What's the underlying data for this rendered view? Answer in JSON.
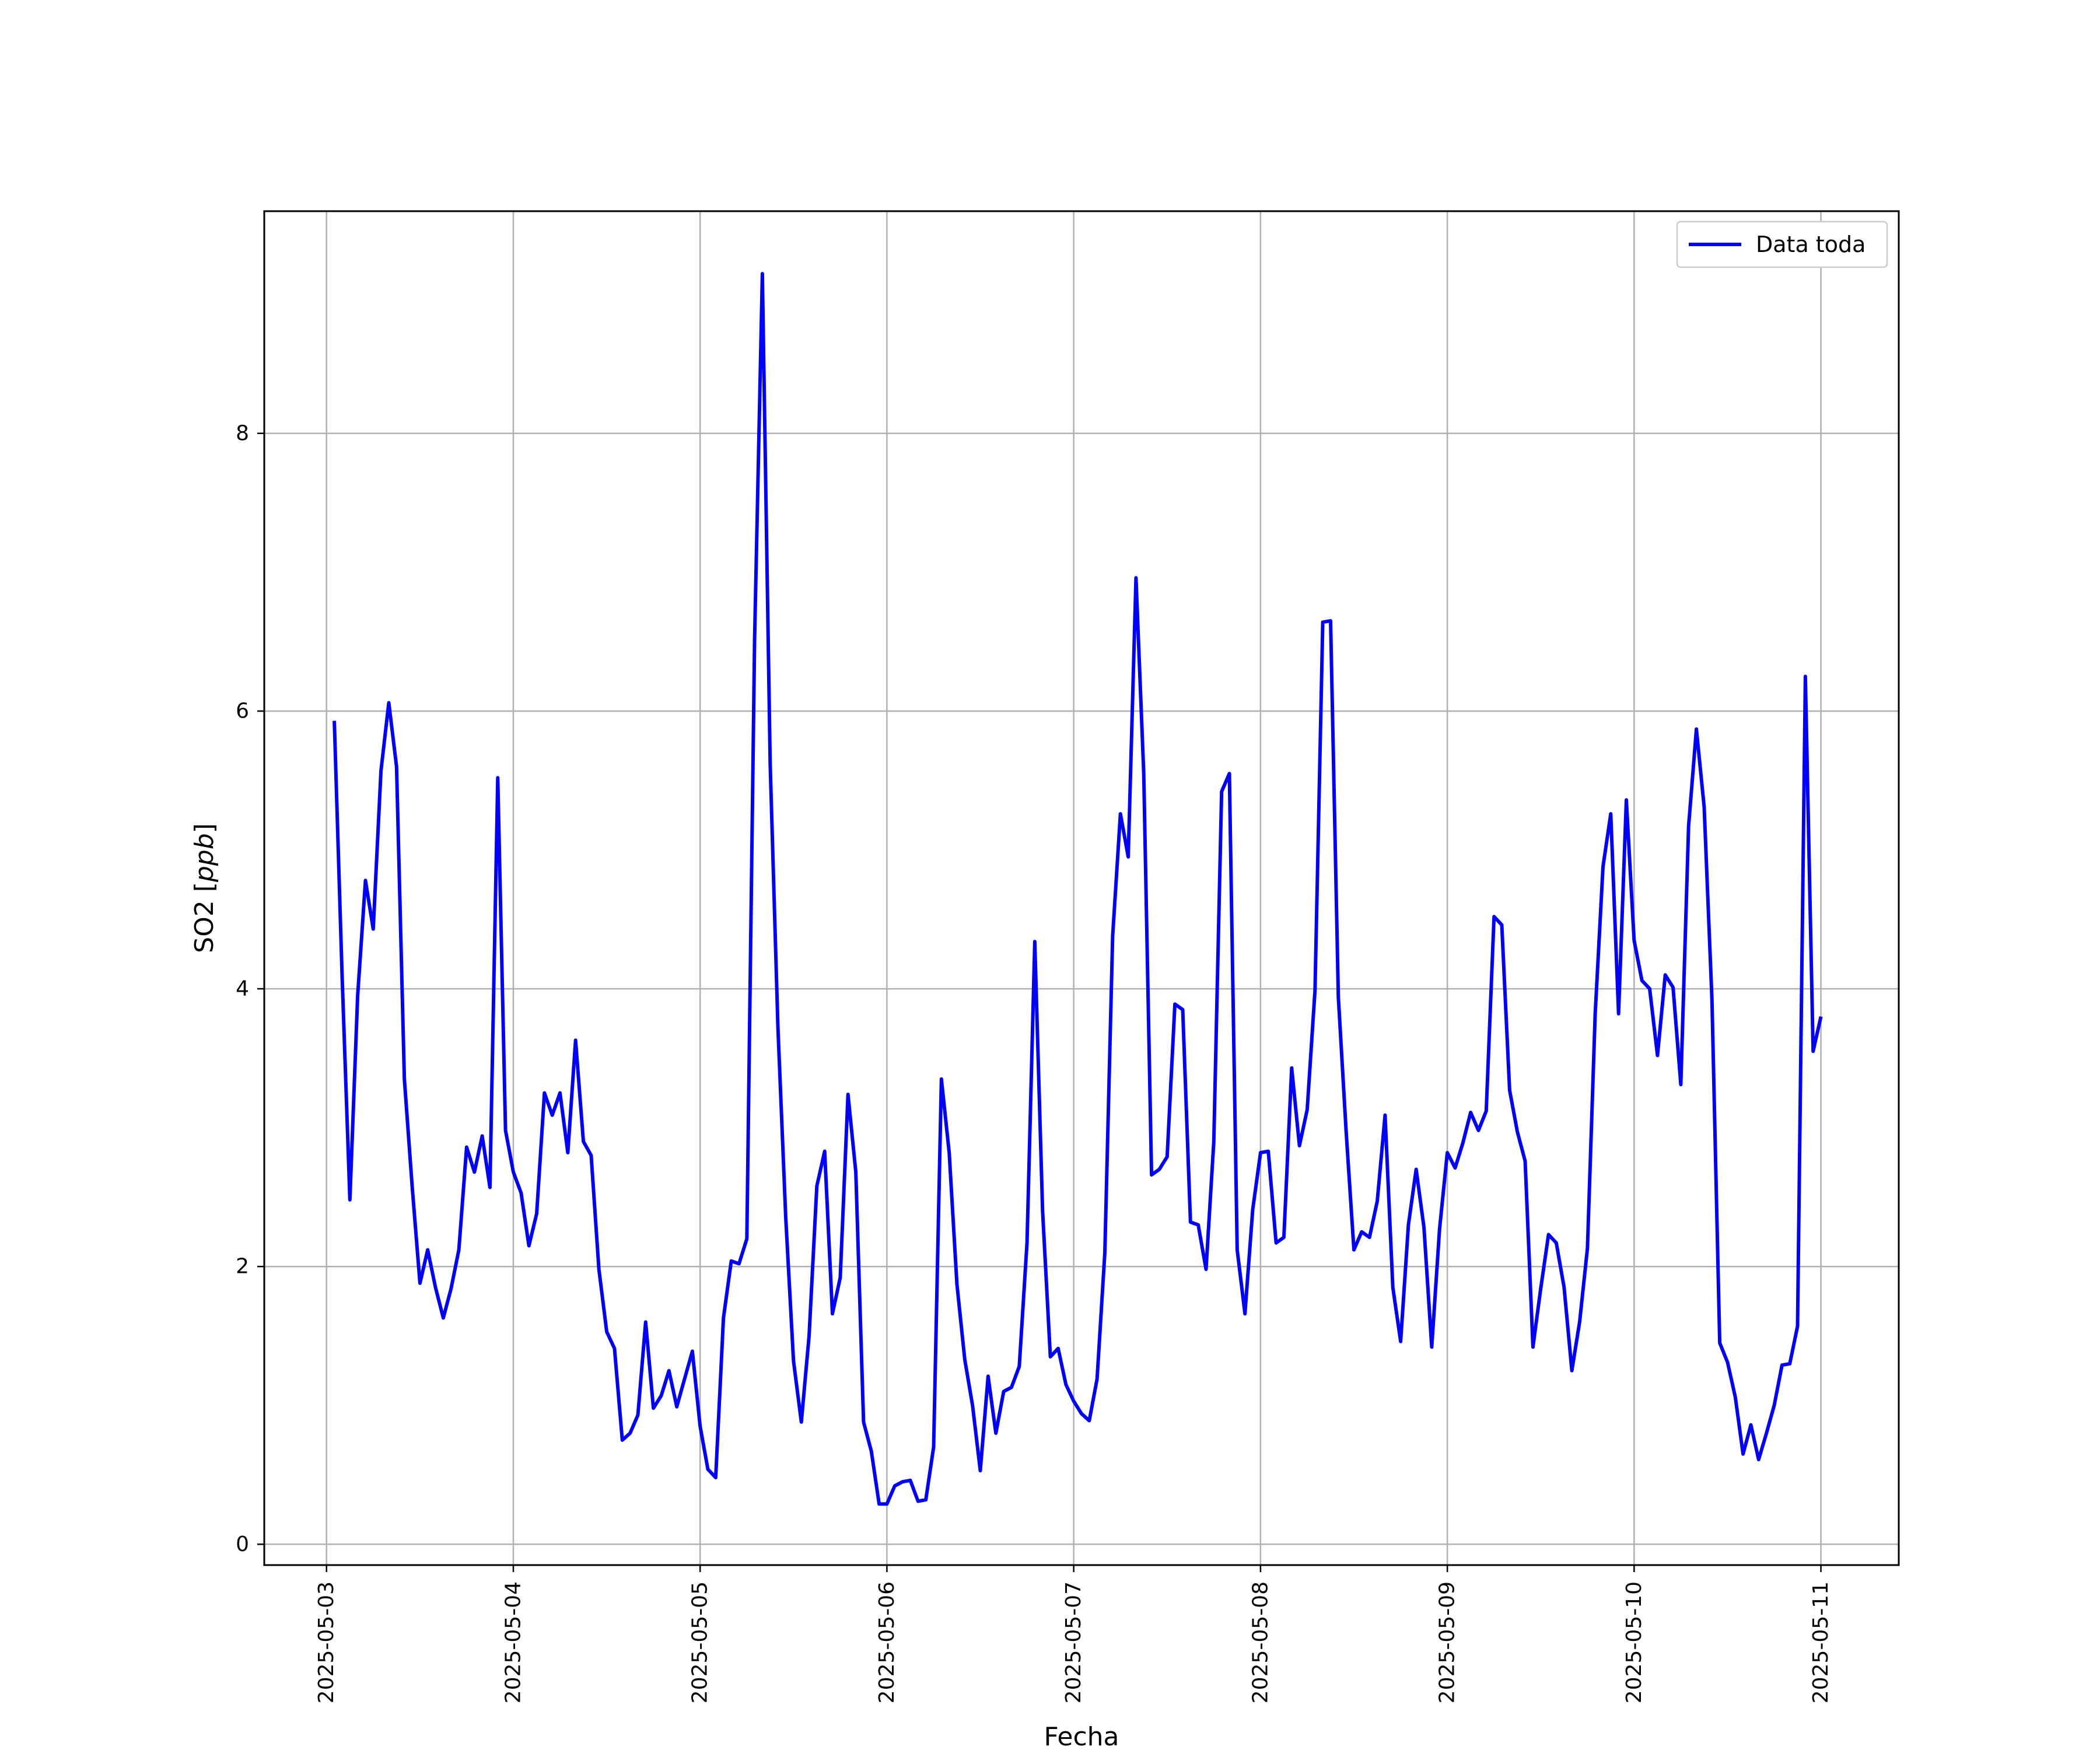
{
  "chart_data": {
    "type": "line",
    "xlabel": "Fecha",
    "ylabel_main": "SO2 [",
    "ylabel_italic": "ppb",
    "ylabel_end": "]",
    "xlim": [
      "2025-05-02 16:00",
      "2025-05-11 10:00"
    ],
    "ylim": [
      -0.15,
      9.6
    ],
    "x_ticks": [
      "2025-05-03",
      "2025-05-04",
      "2025-05-05",
      "2025-05-06",
      "2025-05-07",
      "2025-05-08",
      "2025-05-09",
      "2025-05-10",
      "2025-05-11"
    ],
    "y_ticks": [
      0,
      2,
      4,
      6,
      8
    ],
    "grid": true,
    "legend_position": "top-right",
    "series": [
      {
        "name": "Data toda",
        "color": "#0000ff",
        "x": [
          "2025-05-03 01:00",
          "2025-05-03 02:00",
          "2025-05-03 03:00",
          "2025-05-03 04:00",
          "2025-05-03 05:00",
          "2025-05-03 06:00",
          "2025-05-03 07:00",
          "2025-05-03 08:00",
          "2025-05-03 09:00",
          "2025-05-03 10:00",
          "2025-05-03 11:00",
          "2025-05-03 12:00",
          "2025-05-03 13:00",
          "2025-05-03 14:00",
          "2025-05-03 15:00",
          "2025-05-03 16:00",
          "2025-05-03 17:00",
          "2025-05-03 18:00",
          "2025-05-03 19:00",
          "2025-05-03 20:00",
          "2025-05-03 21:00",
          "2025-05-03 22:00",
          "2025-05-03 23:00",
          "2025-05-04 00:00",
          "2025-05-04 01:00",
          "2025-05-04 02:00",
          "2025-05-04 03:00",
          "2025-05-04 04:00",
          "2025-05-04 05:00",
          "2025-05-04 06:00",
          "2025-05-04 07:00",
          "2025-05-04 08:00",
          "2025-05-04 09:00",
          "2025-05-04 10:00",
          "2025-05-04 11:00",
          "2025-05-04 12:00",
          "2025-05-04 13:00",
          "2025-05-04 14:00",
          "2025-05-04 15:00",
          "2025-05-04 16:00",
          "2025-05-04 17:00",
          "2025-05-04 18:00",
          "2025-05-04 19:00",
          "2025-05-04 20:00",
          "2025-05-04 21:00",
          "2025-05-04 22:00",
          "2025-05-04 23:00",
          "2025-05-05 00:00",
          "2025-05-05 01:00",
          "2025-05-05 02:00",
          "2025-05-05 03:00",
          "2025-05-05 04:00",
          "2025-05-05 05:00",
          "2025-05-05 06:00",
          "2025-05-05 07:00",
          "2025-05-05 08:00",
          "2025-05-05 09:00",
          "2025-05-05 10:00",
          "2025-05-05 11:00",
          "2025-05-05 12:00",
          "2025-05-05 13:00",
          "2025-05-05 14:00",
          "2025-05-05 15:00",
          "2025-05-05 16:00",
          "2025-05-05 17:00",
          "2025-05-05 18:00",
          "2025-05-05 19:00",
          "2025-05-05 20:00",
          "2025-05-05 21:00",
          "2025-05-05 22:00",
          "2025-05-05 23:00",
          "2025-05-06 00:00",
          "2025-05-06 01:00",
          "2025-05-06 02:00",
          "2025-05-06 03:00",
          "2025-05-06 04:00",
          "2025-05-06 05:00",
          "2025-05-06 06:00",
          "2025-05-06 07:00",
          "2025-05-06 08:00",
          "2025-05-06 09:00",
          "2025-05-06 10:00",
          "2025-05-06 11:00",
          "2025-05-06 12:00",
          "2025-05-06 13:00",
          "2025-05-06 14:00",
          "2025-05-06 15:00",
          "2025-05-06 16:00",
          "2025-05-06 17:00",
          "2025-05-06 18:00",
          "2025-05-06 19:00",
          "2025-05-06 20:00",
          "2025-05-06 21:00",
          "2025-05-06 22:00",
          "2025-05-06 23:00",
          "2025-05-07 00:00",
          "2025-05-07 01:00",
          "2025-05-07 02:00",
          "2025-05-07 03:00",
          "2025-05-07 04:00",
          "2025-05-07 05:00",
          "2025-05-07 06:00",
          "2025-05-07 07:00",
          "2025-05-07 08:00",
          "2025-05-07 09:00",
          "2025-05-07 10:00",
          "2025-05-07 11:00",
          "2025-05-07 12:00",
          "2025-05-07 13:00",
          "2025-05-07 14:00",
          "2025-05-07 15:00",
          "2025-05-07 16:00",
          "2025-05-07 17:00",
          "2025-05-07 18:00",
          "2025-05-07 19:00",
          "2025-05-07 20:00",
          "2025-05-07 21:00",
          "2025-05-07 22:00",
          "2025-05-07 23:00",
          "2025-05-08 00:00",
          "2025-05-08 01:00",
          "2025-05-08 02:00",
          "2025-05-08 03:00",
          "2025-05-08 04:00",
          "2025-05-08 05:00",
          "2025-05-08 06:00",
          "2025-05-08 07:00",
          "2025-05-08 08:00",
          "2025-05-08 09:00",
          "2025-05-08 10:00",
          "2025-05-08 11:00",
          "2025-05-08 12:00",
          "2025-05-08 13:00",
          "2025-05-08 14:00",
          "2025-05-08 15:00",
          "2025-05-08 16:00",
          "2025-05-08 17:00",
          "2025-05-08 18:00",
          "2025-05-08 19:00",
          "2025-05-08 20:00",
          "2025-05-08 21:00",
          "2025-05-08 22:00",
          "2025-05-08 23:00",
          "2025-05-09 00:00",
          "2025-05-09 01:00",
          "2025-05-09 02:00",
          "2025-05-09 03:00",
          "2025-05-09 04:00",
          "2025-05-09 05:00",
          "2025-05-09 06:00",
          "2025-05-09 07:00",
          "2025-05-09 08:00",
          "2025-05-09 09:00",
          "2025-05-09 10:00",
          "2025-05-09 11:00",
          "2025-05-09 12:00",
          "2025-05-09 13:00",
          "2025-05-09 14:00",
          "2025-05-09 15:00",
          "2025-05-09 16:00",
          "2025-05-09 17:00",
          "2025-05-09 18:00",
          "2025-05-09 19:00",
          "2025-05-09 20:00",
          "2025-05-09 21:00",
          "2025-05-09 22:00",
          "2025-05-09 23:00",
          "2025-05-10 00:00",
          "2025-05-10 01:00",
          "2025-05-10 02:00",
          "2025-05-10 03:00",
          "2025-05-10 04:00",
          "2025-05-10 05:00",
          "2025-05-10 06:00",
          "2025-05-10 07:00",
          "2025-05-10 08:00",
          "2025-05-10 09:00",
          "2025-05-10 10:00",
          "2025-05-10 11:00",
          "2025-05-10 12:00",
          "2025-05-10 13:00",
          "2025-05-10 14:00",
          "2025-05-10 15:00",
          "2025-05-10 16:00",
          "2025-05-10 17:00",
          "2025-05-10 18:00",
          "2025-05-10 19:00",
          "2025-05-10 20:00",
          "2025-05-10 21:00",
          "2025-05-10 22:00",
          "2025-05-10 23:00",
          "2025-05-11 00:00"
        ],
        "y": [
          5.93,
          4.1,
          2.48,
          3.95,
          4.78,
          4.43,
          5.57,
          6.06,
          5.6,
          3.35,
          2.58,
          1.88,
          2.12,
          1.85,
          1.63,
          1.84,
          2.12,
          2.86,
          2.68,
          2.94,
          2.57,
          5.52,
          2.98,
          2.68,
          2.53,
          2.15,
          2.38,
          3.25,
          3.09,
          3.25,
          2.82,
          3.63,
          2.9,
          2.8,
          1.98,
          1.53,
          1.41,
          0.75,
          0.8,
          0.93,
          1.6,
          0.98,
          1.07,
          1.25,
          0.99,
          1.19,
          1.39,
          0.85,
          0.54,
          0.48,
          1.63,
          2.04,
          2.02,
          2.2,
          6.52,
          9.15,
          5.62,
          3.72,
          2.35,
          1.32,
          0.88,
          1.5,
          2.58,
          2.83,
          1.66,
          1.92,
          3.24,
          2.68,
          0.88,
          0.67,
          0.29,
          0.29,
          0.42,
          0.45,
          0.46,
          0.31,
          0.32,
          0.7,
          3.35,
          2.82,
          1.87,
          1.33,
          1.0,
          0.53,
          1.21,
          0.8,
          1.1,
          1.13,
          1.28,
          2.17,
          4.34,
          2.4,
          1.35,
          1.41,
          1.15,
          1.03,
          0.94,
          0.89,
          1.19,
          2.1,
          4.38,
          5.26,
          4.95,
          6.96,
          5.55,
          2.66,
          2.7,
          2.79,
          3.89,
          3.85,
          2.32,
          2.3,
          1.98,
          2.9,
          5.42,
          5.55,
          2.12,
          1.66,
          2.41,
          2.82,
          2.83,
          2.17,
          2.21,
          3.43,
          2.87,
          3.13,
          3.99,
          6.64,
          6.65,
          3.94,
          2.97,
          2.12,
          2.25,
          2.21,
          2.47,
          3.09,
          1.85,
          1.46,
          2.3,
          2.7,
          2.28,
          1.42,
          2.27,
          2.82,
          2.71,
          2.89,
          3.11,
          2.98,
          3.12,
          4.52,
          4.46,
          3.27,
          2.97,
          2.76,
          1.42,
          1.84,
          2.23,
          2.17,
          1.85,
          1.25,
          1.6,
          2.13,
          3.82,
          4.88,
          5.26,
          3.82,
          5.36,
          4.35,
          4.06,
          4.0,
          3.52,
          4.1,
          4.01,
          3.31,
          5.17,
          5.87,
          5.31,
          3.92,
          1.45,
          1.31,
          1.06,
          0.65,
          0.86,
          0.61,
          0.8,
          1.0,
          1.29,
          1.3,
          1.57,
          6.25,
          3.55,
          3.8
        ]
      }
    ]
  }
}
